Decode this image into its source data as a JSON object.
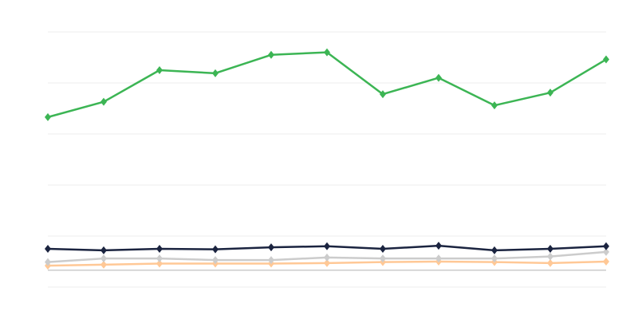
{
  "chart_data": {
    "type": "line",
    "title": "",
    "xlabel": "",
    "ylabel": "",
    "x": [
      1,
      2,
      3,
      4,
      5,
      6,
      7,
      8,
      9,
      10,
      11
    ],
    "ylim": [
      -33,
      467
    ],
    "yticks": [
      -33,
      67,
      167,
      267,
      367,
      467
    ],
    "baseline": 0,
    "grid": true,
    "legend": "none",
    "marker": "diamond",
    "series": [
      {
        "color": "#3cb554",
        "values": [
          300,
          330,
          392,
          386,
          422,
          427,
          345,
          377,
          323,
          348,
          413
        ]
      },
      {
        "color": "#1b2440",
        "values": [
          42,
          39,
          42,
          41,
          45,
          47,
          42,
          48,
          39,
          42,
          47
        ]
      },
      {
        "color": "#cccccc",
        "values": [
          16,
          23,
          23,
          20,
          20,
          25,
          23,
          23,
          23,
          27,
          36
        ]
      },
      {
        "color": "#ffc896",
        "values": [
          9,
          11,
          13,
          13,
          13,
          14,
          16,
          17,
          16,
          14,
          17
        ]
      }
    ]
  }
}
